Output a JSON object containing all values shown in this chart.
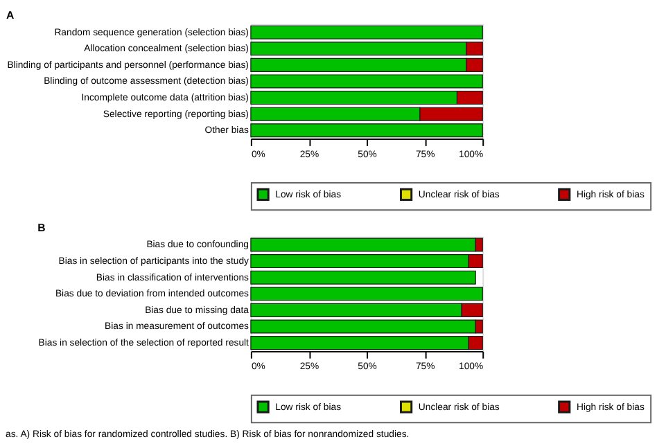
{
  "chart_data": [
    {
      "type": "bar",
      "orientation": "horizontal",
      "stacked": true,
      "title": "A",
      "categories": [
        "Random sequence generation (selection bias)",
        "Allocation concealment (selection bias)",
        "Blinding of participants and personnel (performance bias)",
        "Blinding of outcome assessment (detection bias)",
        "Incomplete outcome data (attrition bias)",
        "Selective reporting (reporting bias)",
        "Other bias"
      ],
      "series": [
        {
          "name": "Low risk of bias",
          "color": "#00c000",
          "values": [
            100,
            93,
            93,
            100,
            89,
            73,
            100
          ]
        },
        {
          "name": "Unclear risk of bias",
          "color": "#e0e000",
          "values": [
            0,
            0,
            0,
            0,
            0,
            0,
            0
          ]
        },
        {
          "name": "High risk of bias",
          "color": "#c00000",
          "values": [
            0,
            7,
            7,
            0,
            11,
            27,
            0
          ]
        }
      ],
      "xlim": [
        0,
        100
      ],
      "xticks": [
        {
          "value": 0,
          "label": "0%"
        },
        {
          "value": 25,
          "label": "25%"
        },
        {
          "value": 50,
          "label": "50%"
        },
        {
          "value": 75,
          "label": "75%"
        },
        {
          "value": 100,
          "label": "100%"
        }
      ],
      "grid": false,
      "legend": "bottom"
    },
    {
      "type": "bar",
      "orientation": "horizontal",
      "stacked": true,
      "title": "B",
      "categories": [
        "Bias due to confounding",
        "Bias in selection of participants into the study",
        "Bias in classification of interventions",
        "Bias due to deviation from intended outcomes",
        "Bias due to missing data",
        "Bias in measurement of outcomes",
        "Bias in selection of the selection of reported result"
      ],
      "series": [
        {
          "name": "Low risk of bias",
          "color": "#00c000",
          "values": [
            97,
            94,
            97,
            100,
            91,
            97,
            94
          ]
        },
        {
          "name": "Unclear risk of bias",
          "color": "#e0e000",
          "values": [
            0,
            0,
            0,
            0,
            0,
            0,
            0
          ]
        },
        {
          "name": "High risk of bias",
          "color": "#c00000",
          "values": [
            3,
            6,
            0,
            0,
            9,
            3,
            6
          ]
        }
      ],
      "xlim": [
        0,
        100
      ],
      "xticks": [
        {
          "value": 0,
          "label": "0%"
        },
        {
          "value": 25,
          "label": "25%"
        },
        {
          "value": 50,
          "label": "50%"
        },
        {
          "value": 75,
          "label": "75%"
        },
        {
          "value": 100,
          "label": "100%"
        }
      ],
      "grid": false,
      "legend": "bottom",
      "annotations": [
        "as. A) Risk of bias for randomized controlled studies. B) Risk of bias for nonrandomized studies."
      ]
    }
  ]
}
